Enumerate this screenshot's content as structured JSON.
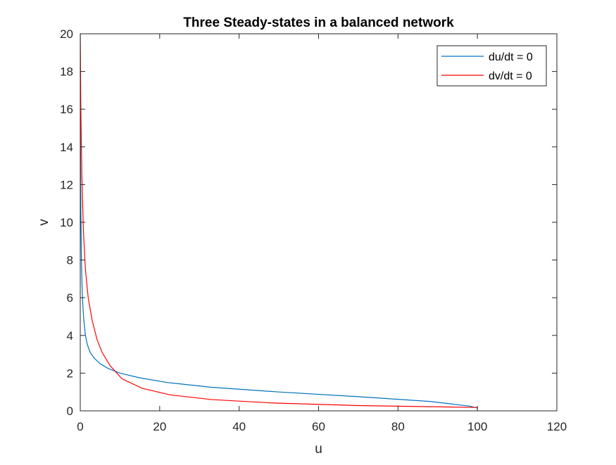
{
  "chart_data": {
    "type": "line",
    "title": "Three Steady-states in a balanced network",
    "xlabel": "u",
    "ylabel": "v",
    "xlim": [
      0,
      120
    ],
    "ylim": [
      0,
      20
    ],
    "xticks": [
      0,
      20,
      40,
      60,
      80,
      100,
      120
    ],
    "yticks": [
      0,
      2,
      4,
      6,
      8,
      10,
      12,
      14,
      16,
      18,
      20
    ],
    "grid": false,
    "legend_position": "top-right",
    "series": [
      {
        "name": "du/dt = 0",
        "color": "#0072BD",
        "x": [
          100.0,
          98.0,
          88.0,
          70.0,
          50.0,
          33.0,
          22.0,
          15.0,
          10.0,
          7.0,
          5.0,
          3.5,
          2.5,
          1.8,
          1.3,
          0.9,
          0.65,
          0.45,
          0.3,
          0.18,
          0.1,
          0.05,
          0.02,
          0.0
        ],
        "y": [
          0.15,
          0.25,
          0.5,
          0.75,
          1.0,
          1.25,
          1.5,
          1.75,
          2.0,
          2.25,
          2.5,
          2.8,
          3.1,
          3.5,
          4.0,
          4.8,
          5.6,
          6.6,
          8.0,
          10.0,
          12.0,
          14.5,
          17.0,
          20.0
        ]
      },
      {
        "name": "dv/dt = 0",
        "color": "#FF0000",
        "x": [
          0.0,
          0.15,
          0.4,
          0.8,
          1.3,
          2.0,
          3.0,
          4.2,
          5.5,
          7.5,
          10.5,
          15.5,
          22.5,
          33.0,
          48.0,
          70.0,
          100.0
        ],
        "y": [
          20.0,
          16.0,
          12.5,
          9.5,
          7.5,
          6.0,
          4.8,
          3.8,
          3.1,
          2.4,
          1.7,
          1.2,
          0.85,
          0.6,
          0.42,
          0.28,
          0.18
        ]
      }
    ]
  }
}
